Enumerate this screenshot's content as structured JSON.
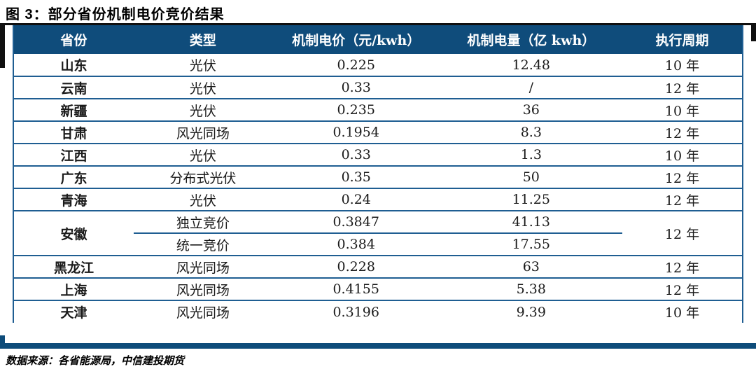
{
  "figure": {
    "title": "图 3：部分省份机制电价竞价结果",
    "source_note": "数据来源：各省能源局，中信建投期货"
  },
  "colors": {
    "header_bg": "#0F4C7B",
    "table_border": "#1F5E92",
    "bottom_bar": "#0E4C7A",
    "top_rule": "#101010"
  },
  "table": {
    "columns": [
      "省份",
      "类型",
      "机制电价（元/kwh）",
      "机制电量（亿 kwh）",
      "执行周期"
    ],
    "rows": [
      {
        "province": "山东",
        "type": "光伏",
        "price": "0.225",
        "volume": "12.48",
        "period": "10 年"
      },
      {
        "province": "云南",
        "type": "光伏",
        "price": "0.33",
        "volume": "/",
        "period": "12 年"
      },
      {
        "province": "新疆",
        "type": "光伏",
        "price": "0.235",
        "volume": "36",
        "period": "10 年"
      },
      {
        "province": "甘肃",
        "type": "风光同场",
        "price": "0.1954",
        "volume": "8.3",
        "period": "12 年"
      },
      {
        "province": "江西",
        "type": "光伏",
        "price": "0.33",
        "volume": "1.3",
        "period": "10 年"
      },
      {
        "province": "广东",
        "type": "分布式光伏",
        "price": "0.35",
        "volume": "50",
        "period": "12 年"
      },
      {
        "province": "青海",
        "type": "光伏",
        "price": "0.24",
        "volume": "11.25",
        "period": "12 年"
      },
      {
        "province": "安徽",
        "province_rowspan": 2,
        "type": "独立竞价",
        "price": "0.3847",
        "volume": "41.13",
        "period": "12 年",
        "period_rowspan": 2
      },
      {
        "type": "统一竞价",
        "price": "0.384",
        "volume": "17.55"
      },
      {
        "province": "黑龙江",
        "type": "风光同场",
        "price": "0.228",
        "volume": "63",
        "period": "12 年"
      },
      {
        "province": "上海",
        "type": "风光同场",
        "price": "0.4155",
        "volume": "5.38",
        "period": "12 年"
      },
      {
        "province": "天津",
        "type": "风光同场",
        "price": "0.3196",
        "volume": "9.39",
        "period": "10 年"
      }
    ]
  }
}
